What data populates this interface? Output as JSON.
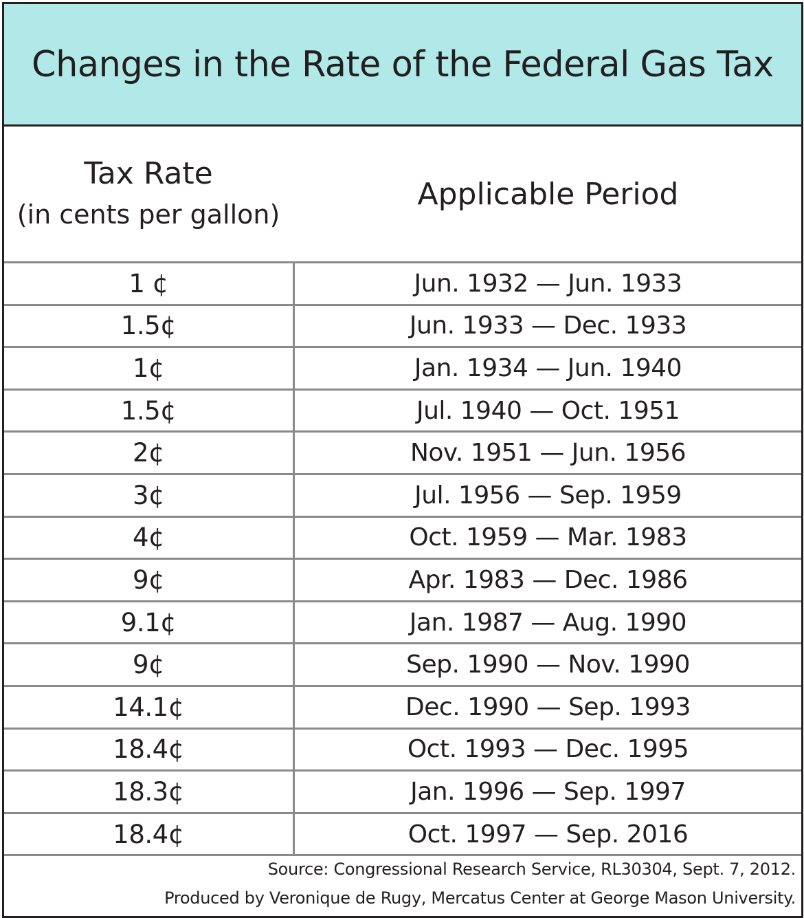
{
  "chart_data": {
    "type": "table",
    "title": "Changes in the Rate of the Federal Gas Tax",
    "columns": [
      {
        "label": "Tax Rate",
        "sublabel": "(in cents per gallon)"
      },
      {
        "label": "Applicable Period"
      }
    ],
    "rows": [
      {
        "rate": "1 ¢",
        "period": "Jun. 1932 — Jun. 1933"
      },
      {
        "rate": "1.5¢",
        "period": "Jun. 1933 — Dec. 1933"
      },
      {
        "rate": "1¢",
        "period": "Jan. 1934 — Jun. 1940"
      },
      {
        "rate": "1.5¢",
        "period": "Jul. 1940 — Oct. 1951"
      },
      {
        "rate": "2¢",
        "period": "Nov. 1951 — Jun. 1956"
      },
      {
        "rate": "3¢",
        "period": "Jul. 1956 — Sep. 1959"
      },
      {
        "rate": "4¢",
        "period": "Oct. 1959 — Mar. 1983"
      },
      {
        "rate": "9¢",
        "period": "Apr. 1983 — Dec. 1986"
      },
      {
        "rate": "9.1¢",
        "period": "Jan. 1987 — Aug. 1990"
      },
      {
        "rate": "9¢",
        "period": "Sep. 1990 — Nov. 1990"
      },
      {
        "rate": "14.1¢",
        "period": "Dec. 1990 — Sep. 1993"
      },
      {
        "rate": "18.4¢",
        "period": "Oct. 1993 — Dec. 1995"
      },
      {
        "rate": "18.3¢",
        "period": "Jan. 1996 — Sep. 1997"
      },
      {
        "rate": "18.4¢",
        "period": "Oct. 1997 — Sep. 2016"
      }
    ],
    "source": "Source: Congressional Research Service, RL30304, Sept. 7, 2012.",
    "credit": "Produced by Veronique de Rugy, Mercatus Center at George Mason University."
  },
  "colors": {
    "title_background": "#b1e8e8",
    "border": "#231f20",
    "row_divider": "#8a8a8a"
  }
}
